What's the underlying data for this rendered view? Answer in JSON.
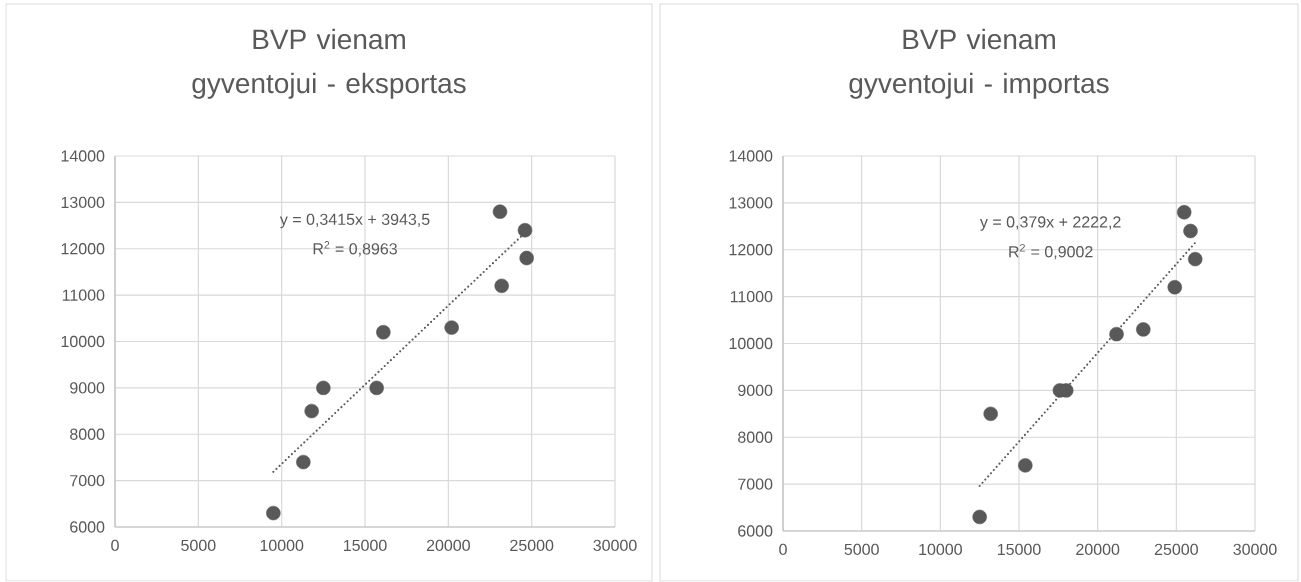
{
  "chart_data": [
    {
      "type": "scatter",
      "title": "BVP vienam gyventojui - eksportas",
      "xlim": [
        0,
        30000
      ],
      "ylim": [
        6000,
        14000
      ],
      "xticks": [
        0,
        5000,
        10000,
        15000,
        20000,
        25000,
        30000
      ],
      "yticks": [
        6000,
        7000,
        8000,
        9000,
        10000,
        11000,
        12000,
        13000,
        14000
      ],
      "grid": true,
      "series": [
        {
          "marker": "circle",
          "color": "#595959",
          "x": [
            9500,
            11300,
            11800,
            12500,
            15700,
            16100,
            20200,
            23100,
            24600,
            24700,
            23200
          ],
          "values": [
            6300,
            7400,
            8500,
            9000,
            9000,
            10200,
            10300,
            12800,
            12400,
            11800,
            11200
          ]
        },
        {
          "type": "line",
          "color": "#595959",
          "line_style": "dotted",
          "marker": "none",
          "x": [
            9500,
            24700
          ],
          "values": [
            7190,
            12380
          ]
        }
      ],
      "annotations": [
        "y = 0,3415x + 3943,5",
        "R$^{2}$ = 0,8963"
      ]
    },
    {
      "type": "scatter",
      "title": "BVP vienam gyventojui - importas",
      "xlim": [
        0,
        30000
      ],
      "ylim": [
        6000,
        14000
      ],
      "xticks": [
        0,
        5000,
        10000,
        15000,
        20000,
        25000,
        30000
      ],
      "yticks": [
        6000,
        7000,
        8000,
        9000,
        10000,
        11000,
        12000,
        13000,
        14000
      ],
      "grid": true,
      "series": [
        {
          "marker": "circle",
          "color": "#595959",
          "x": [
            12500,
            13200,
            15400,
            17600,
            18000,
            21200,
            22900,
            24900,
            25500,
            25900,
            26200
          ],
          "values": [
            6300,
            8500,
            7400,
            9000,
            9000,
            10200,
            10300,
            11200,
            12800,
            12400,
            11800
          ]
        },
        {
          "type": "line",
          "color": "#595959",
          "line_style": "dotted",
          "marker": "none",
          "x": [
            12500,
            26200
          ],
          "values": [
            6960,
            12150
          ]
        }
      ],
      "annotations": [
        "y = 0,379x + 2222,2",
        "R$^{2}$ = 0,9002"
      ]
    }
  ]
}
